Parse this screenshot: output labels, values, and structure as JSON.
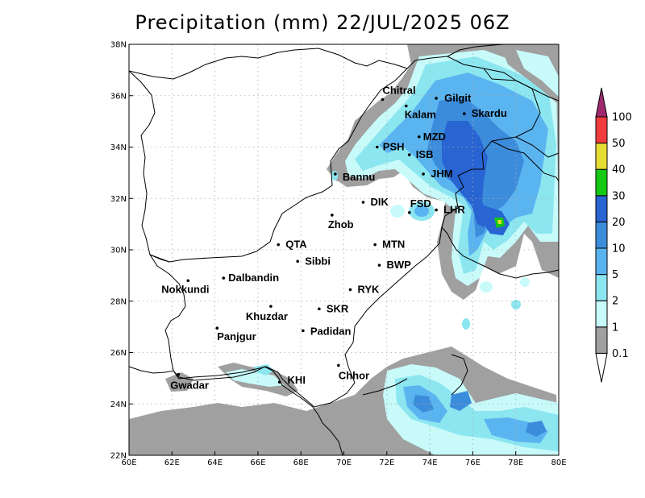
{
  "title": "Precipitation (mm) 22/JUL/2025 06Z",
  "x_ticks": [
    "60E",
    "62E",
    "64E",
    "66E",
    "68E",
    "70E",
    "72E",
    "74E",
    "76E",
    "78E",
    "80E"
  ],
  "y_ticks": [
    "22N",
    "24N",
    "26N",
    "28N",
    "30N",
    "32N",
    "34N",
    "36N",
    "38N"
  ],
  "colorbar": {
    "levels": [
      "0.1",
      "1",
      "2",
      "5",
      "10",
      "20",
      "30",
      "40",
      "50",
      "100"
    ],
    "colors": [
      "#a0a0a0",
      "#c8fafa",
      "#8ce6f0",
      "#5ab4f0",
      "#3c8cdc",
      "#2864d2",
      "#14c814",
      "#e6dc32",
      "#f03c3c",
      "#a0286e"
    ]
  },
  "cities": [
    {
      "name": "Chitral",
      "lon": 71.8,
      "lat": 35.85
    },
    {
      "name": "Gilgit",
      "lon": 74.3,
      "lat": 35.9
    },
    {
      "name": "Kalam",
      "lon": 72.9,
      "lat": 35.6
    },
    {
      "name": "Skardu",
      "lon": 75.6,
      "lat": 35.3
    },
    {
      "name": "MZD",
      "lon": 73.5,
      "lat": 34.4
    },
    {
      "name": "PSH",
      "lon": 71.55,
      "lat": 34.0
    },
    {
      "name": "ISB",
      "lon": 73.05,
      "lat": 33.7
    },
    {
      "name": "JHM",
      "lon": 73.7,
      "lat": 32.95
    },
    {
      "name": "Bannu",
      "lon": 69.6,
      "lat": 32.95
    },
    {
      "name": "DIK",
      "lon": 70.9,
      "lat": 31.85
    },
    {
      "name": "FSD",
      "lon": 73.05,
      "lat": 31.45
    },
    {
      "name": "LHR",
      "lon": 74.3,
      "lat": 31.55
    },
    {
      "name": "Zhob",
      "lon": 69.45,
      "lat": 31.35
    },
    {
      "name": "QTA",
      "lon": 66.95,
      "lat": 30.2
    },
    {
      "name": "MTN",
      "lon": 71.45,
      "lat": 30.2
    },
    {
      "name": "Sibbi",
      "lon": 67.85,
      "lat": 29.55
    },
    {
      "name": "BWP",
      "lon": 71.65,
      "lat": 29.4
    },
    {
      "name": "Dalbandin",
      "lon": 64.4,
      "lat": 28.9
    },
    {
      "name": "Nokkundi",
      "lon": 62.75,
      "lat": 28.8
    },
    {
      "name": "RYK",
      "lon": 70.3,
      "lat": 28.45
    },
    {
      "name": "SKR",
      "lon": 68.85,
      "lat": 27.7
    },
    {
      "name": "Khuzdar",
      "lon": 66.6,
      "lat": 27.8
    },
    {
      "name": "Panjgur",
      "lon": 64.1,
      "lat": 26.95
    },
    {
      "name": "Padidan",
      "lon": 68.1,
      "lat": 26.85
    },
    {
      "name": "Chhor",
      "lon": 69.75,
      "lat": 25.5
    },
    {
      "name": "Gwadar",
      "lon": 62.3,
      "lat": 25.15
    },
    {
      "name": "KHI",
      "lon": 67.0,
      "lat": 24.85
    }
  ]
}
